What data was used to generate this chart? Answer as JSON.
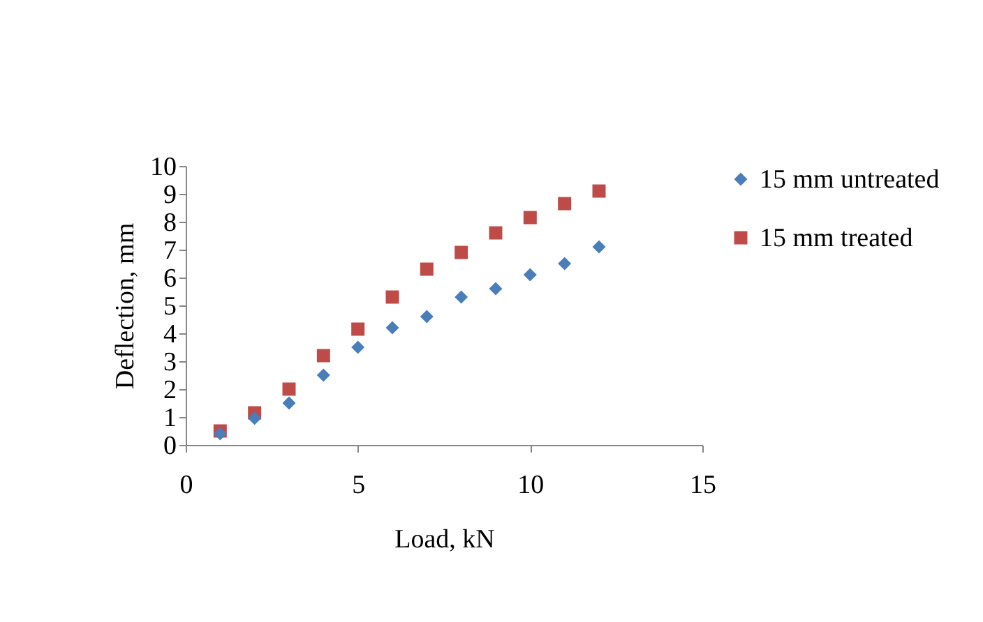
{
  "chart_data": {
    "type": "scatter",
    "xlabel": "Load, kN",
    "ylabel": "Deflection, mm",
    "x": [
      1,
      2,
      3,
      4,
      5,
      6,
      7,
      8,
      9,
      10,
      11,
      12
    ],
    "series": [
      {
        "name": "15 mm untreated",
        "color": "#4a7ebb",
        "marker": "diamond",
        "values": [
          0.4,
          0.95,
          1.5,
          2.5,
          3.5,
          4.2,
          4.6,
          5.3,
          5.6,
          6.1,
          6.5,
          7.1
        ]
      },
      {
        "name": "15 mm treated",
        "color": "#be4b48",
        "marker": "square",
        "values": [
          0.5,
          1.15,
          2.0,
          3.2,
          4.15,
          5.3,
          6.3,
          6.9,
          7.6,
          8.15,
          8.65,
          9.1
        ]
      }
    ],
    "xlim": [
      0,
      15
    ],
    "xticks": [
      0,
      5,
      10,
      15
    ],
    "ylim": [
      0,
      10
    ],
    "yticks": [
      0,
      1,
      2,
      3,
      4,
      5,
      6,
      7,
      8,
      9,
      10
    ],
    "grid": false,
    "legend": "right"
  }
}
